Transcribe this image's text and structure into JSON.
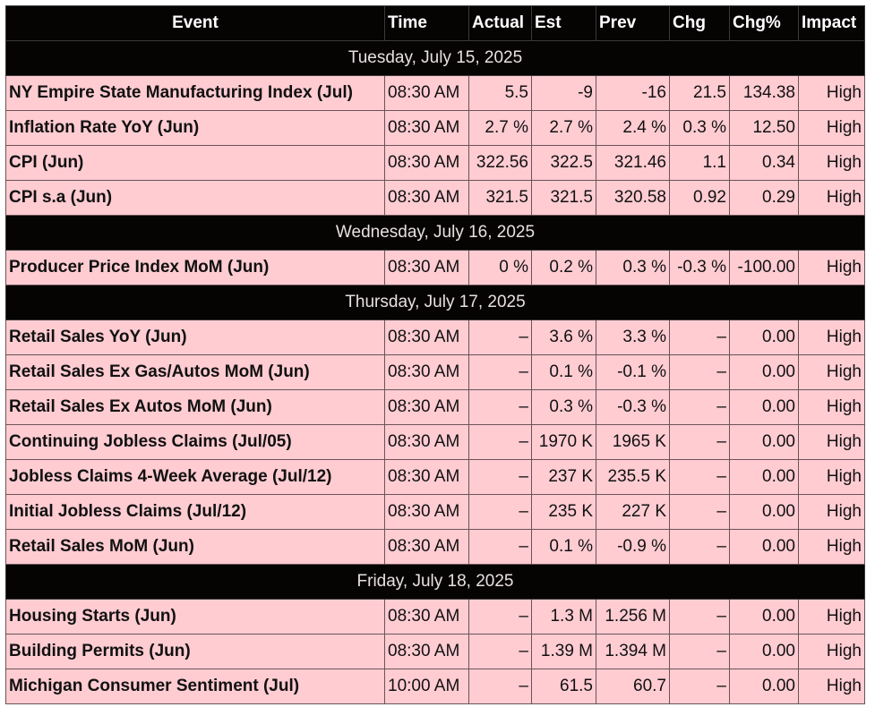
{
  "headers": [
    "Event",
    "Time",
    "Actual",
    "Est",
    "Prev",
    "Chg",
    "Chg%",
    "Impact"
  ],
  "days": [
    {
      "date": "Tuesday, July 15, 2025",
      "rows": [
        {
          "event": "NY Empire State Manufacturing Index (Jul)",
          "time": "08:30 AM",
          "actual": "5.5",
          "est": "-9",
          "prev": "-16",
          "chg": "21.5",
          "chg_pct": "134.38",
          "impact": "High"
        },
        {
          "event": "Inflation Rate YoY (Jun)",
          "time": "08:30 AM",
          "actual": "2.7 %",
          "est": "2.7 %",
          "prev": "2.4 %",
          "chg": "0.3 %",
          "chg_pct": "12.50",
          "impact": "High"
        },
        {
          "event": "CPI (Jun)",
          "time": "08:30 AM",
          "actual": "322.56",
          "est": "322.5",
          "prev": "321.46",
          "chg": "1.1",
          "chg_pct": "0.34",
          "impact": "High"
        },
        {
          "event": "CPI s.a (Jun)",
          "time": "08:30 AM",
          "actual": "321.5",
          "est": "321.5",
          "prev": "320.58",
          "chg": "0.92",
          "chg_pct": "0.29",
          "impact": "High"
        }
      ]
    },
    {
      "date": "Wednesday, July 16, 2025",
      "rows": [
        {
          "event": "Producer Price Index MoM (Jun)",
          "time": "08:30 AM",
          "actual": "0 %",
          "est": "0.2 %",
          "prev": "0.3 %",
          "chg": "-0.3 %",
          "chg_pct": "-100.00",
          "impact": "High"
        }
      ]
    },
    {
      "date": "Thursday, July 17, 2025",
      "rows": [
        {
          "event": "Retail Sales YoY (Jun)",
          "time": "08:30 AM",
          "actual": "–",
          "est": "3.6 %",
          "prev": "3.3 %",
          "chg": "–",
          "chg_pct": "0.00",
          "impact": "High"
        },
        {
          "event": "Retail Sales Ex Gas/Autos MoM (Jun)",
          "time": "08:30 AM",
          "actual": "–",
          "est": "0.1 %",
          "prev": "-0.1 %",
          "chg": "–",
          "chg_pct": "0.00",
          "impact": "High"
        },
        {
          "event": "Retail Sales Ex Autos MoM (Jun)",
          "time": "08:30 AM",
          "actual": "–",
          "est": "0.3 %",
          "prev": "-0.3 %",
          "chg": "–",
          "chg_pct": "0.00",
          "impact": "High"
        },
        {
          "event": "Continuing Jobless Claims (Jul/05)",
          "time": "08:30 AM",
          "actual": "–",
          "est": "1970 K",
          "prev": "1965 K",
          "chg": "–",
          "chg_pct": "0.00",
          "impact": "High"
        },
        {
          "event": "Jobless Claims 4-Week Average (Jul/12)",
          "time": "08:30 AM",
          "actual": "–",
          "est": "237 K",
          "prev": "235.5 K",
          "chg": "–",
          "chg_pct": "0.00",
          "impact": "High"
        },
        {
          "event": "Initial Jobless Claims (Jul/12)",
          "time": "08:30 AM",
          "actual": "–",
          "est": "235 K",
          "prev": "227 K",
          "chg": "–",
          "chg_pct": "0.00",
          "impact": "High"
        },
        {
          "event": "Retail Sales MoM (Jun)",
          "time": "08:30 AM",
          "actual": "–",
          "est": "0.1 %",
          "prev": "-0.9 %",
          "chg": "–",
          "chg_pct": "0.00",
          "impact": "High"
        }
      ]
    },
    {
      "date": "Friday, July 18, 2025",
      "rows": [
        {
          "event": "Housing Starts (Jun)",
          "time": "08:30 AM",
          "actual": "–",
          "est": "1.3 M",
          "prev": "1.256 M",
          "chg": "–",
          "chg_pct": "0.00",
          "impact": "High"
        },
        {
          "event": "Building Permits (Jun)",
          "time": "08:30 AM",
          "actual": "–",
          "est": "1.39 M",
          "prev": "1.394 M",
          "chg": "–",
          "chg_pct": "0.00",
          "impact": "High"
        },
        {
          "event": "Michigan Consumer Sentiment (Jul)",
          "time": "10:00 AM",
          "actual": "–",
          "est": "61.5",
          "prev": "60.7",
          "chg": "–",
          "chg_pct": "0.00",
          "impact": "High"
        }
      ]
    }
  ]
}
